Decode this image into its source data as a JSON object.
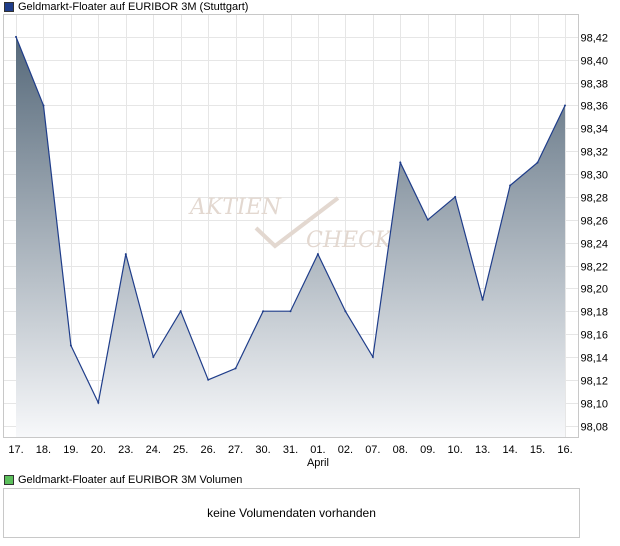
{
  "legend": {
    "price_label": "Geldmarkt-Floater auf EURIBOR 3M (Stuttgart)",
    "volume_label": "Geldmarkt-Floater auf EURIBOR 3M Volumen",
    "price_color": "#1f3d8a",
    "volume_color": "#5cbf5c"
  },
  "watermark": {
    "line1": "AKTIEN",
    "line2": "CHECK"
  },
  "volume": {
    "empty_text": "keine Volumendaten vorhanden"
  },
  "chart_data": {
    "type": "area",
    "x": [
      "17.",
      "18.",
      "19.",
      "20.",
      "23.",
      "24.",
      "25.",
      "26.",
      "27.",
      "30.",
      "31.",
      "01.",
      "02.",
      "07.",
      "08.",
      "09.",
      "10.",
      "13.",
      "14.",
      "15.",
      "16."
    ],
    "month_label": {
      "text": "April",
      "at_index": 11
    },
    "series": [
      {
        "values": [
          98.42,
          98.36,
          98.15,
          98.1,
          98.23,
          98.14,
          98.18,
          98.12,
          98.13,
          98.18,
          98.18,
          98.23,
          98.18,
          98.14,
          98.31,
          98.26,
          98.28,
          98.19,
          98.29,
          98.31,
          98.36
        ]
      }
    ],
    "yticks": [
      "98,08",
      "98,10",
      "98,12",
      "98,14",
      "98,16",
      "98,18",
      "98,20",
      "98,22",
      "98,24",
      "98,26",
      "98,28",
      "98,30",
      "98,32",
      "98,34",
      "98,36",
      "98,38",
      "98,40",
      "98,42"
    ],
    "ylim": [
      98.07,
      98.44
    ],
    "grid": true,
    "y_axis_side": "right",
    "line_color": "#1f3d8a",
    "fill_top_color": "#56697a",
    "fill_bottom_color": "#f7f8fa"
  }
}
